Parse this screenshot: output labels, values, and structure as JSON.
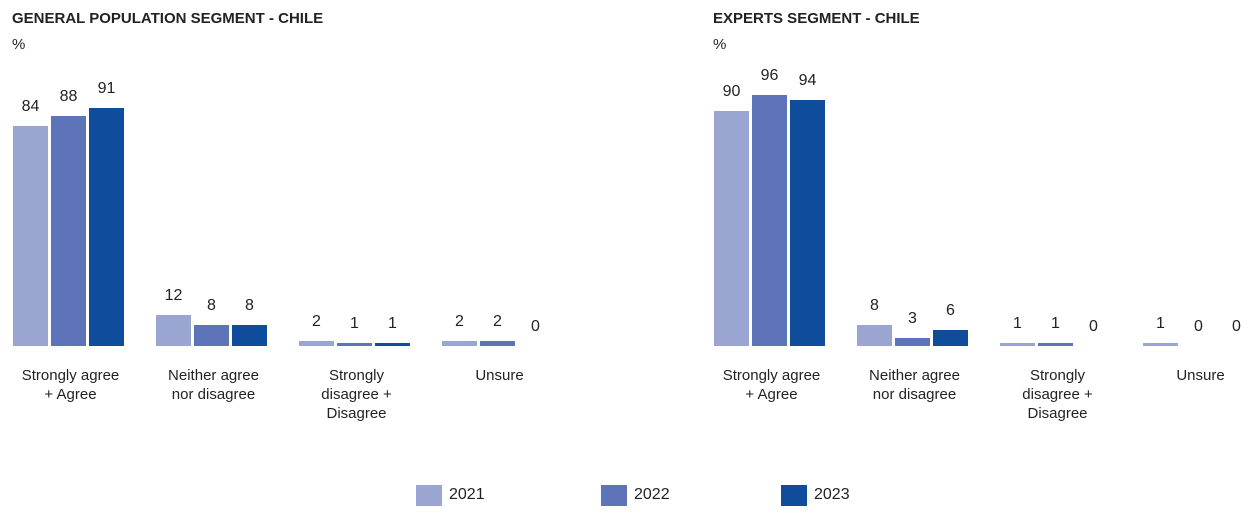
{
  "chart_data": [
    {
      "type": "bar",
      "title": "GENERAL POPULATION SEGMENT - CHILE",
      "subtitle": "%",
      "categories": [
        "Strongly agree + Agree",
        "Neither agree nor disagree",
        "Strongly disagree + Disagree",
        "Unsure"
      ],
      "series": [
        {
          "name": "2021",
          "color": "#9ba5d1",
          "values": [
            84,
            12,
            2,
            2
          ]
        },
        {
          "name": "2022",
          "color": "#5e74b8",
          "values": [
            88,
            8,
            1,
            2
          ]
        },
        {
          "name": "2023",
          "color": "#0f4c9c",
          "values": [
            91,
            8,
            1,
            0
          ]
        }
      ]
    },
    {
      "type": "bar",
      "title": "EXPERTS SEGMENT - CHILE",
      "subtitle": "%",
      "categories": [
        "Strongly agree + Agree",
        "Neither agree nor disagree",
        "Strongly disagree + Disagree",
        "Unsure"
      ],
      "series": [
        {
          "name": "2021",
          "color": "#9ba5d1",
          "values": [
            90,
            8,
            1,
            1
          ]
        },
        {
          "name": "2022",
          "color": "#5e74b8",
          "values": [
            96,
            3,
            1,
            0
          ]
        },
        {
          "name": "2023",
          "color": "#0f4c9c",
          "values": [
            94,
            6,
            0,
            0
          ]
        }
      ]
    }
  ]
}
